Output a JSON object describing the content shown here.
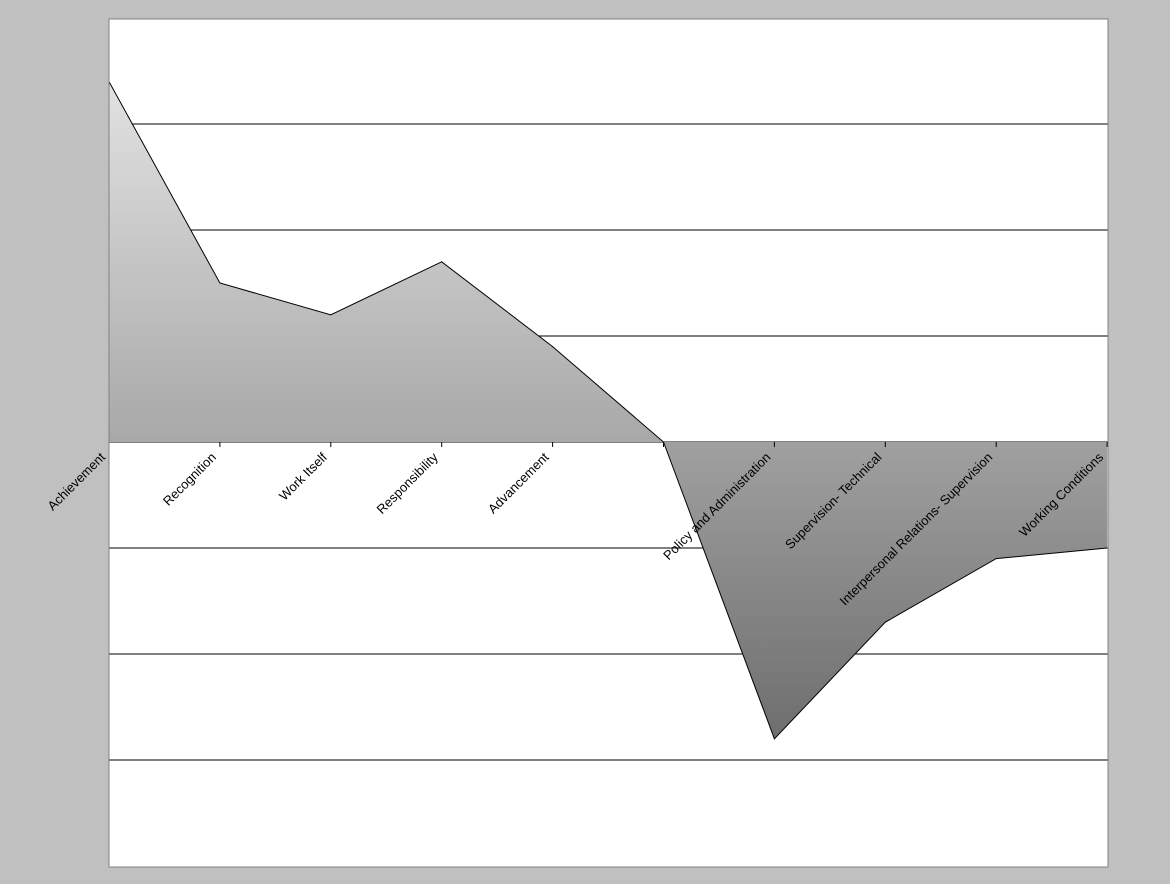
{
  "chart_data": {
    "type": "area",
    "title": "",
    "xlabel": "",
    "ylabel": "",
    "categories": [
      "Achievement",
      "Recognition",
      "Work Itself",
      "Responsibility",
      "Advancement",
      "",
      "Policy and Administration",
      "Supervision- Technical",
      "Interpersonal Relations- Supervision",
      "Working Conditions"
    ],
    "values": [
      3.4,
      1.5,
      1.2,
      1.7,
      0.9,
      0.0,
      -2.8,
      -1.7,
      -1.1,
      -1.0
    ],
    "ylim": [
      -4,
      4
    ],
    "y_tick_step": 1,
    "grid": true,
    "legend": "none",
    "colors": {
      "page_background": "#c0c0c0",
      "plot_background": "#ffffff",
      "positive_fill_top": "#e2e2e2",
      "positive_fill_bottom": "#a8a8a8",
      "negative_fill_top": "#a0a0a0",
      "negative_fill_bottom": "#6e6e6e",
      "outline": "#000000",
      "gridline": "#000000"
    }
  }
}
